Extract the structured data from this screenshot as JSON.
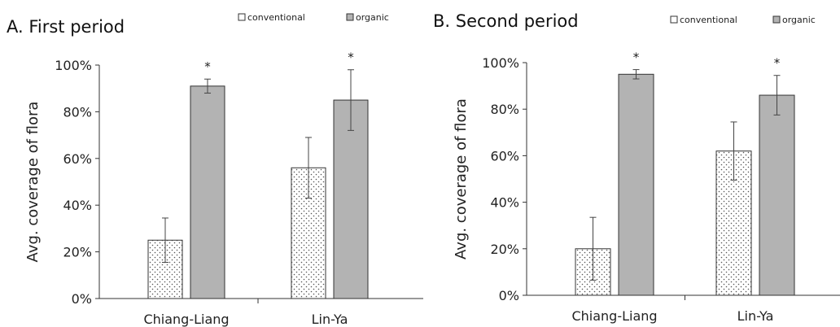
{
  "chart_data": [
    {
      "type": "bar",
      "title": "A. First period",
      "ylabel": "Avg. coverage of flora",
      "ylim": [
        0,
        100
      ],
      "yticks": [
        "0%",
        "20%",
        "40%",
        "60%",
        "80%",
        "100%"
      ],
      "categories": [
        "Chiang-Liang",
        "Lin-Ya"
      ],
      "series": [
        {
          "name": "conventional",
          "values": [
            25,
            56
          ],
          "errors": [
            9.5,
            13
          ]
        },
        {
          "name": "organic",
          "values": [
            91,
            85
          ],
          "errors": [
            3,
            13
          ]
        }
      ],
      "significance": [
        "*",
        "*"
      ],
      "legend": "top-right",
      "grid": false
    },
    {
      "type": "bar",
      "title": "B. Second period",
      "ylabel": "Avg. coverage of flora",
      "ylim": [
        0,
        100
      ],
      "yticks": [
        "0%",
        "20%",
        "40%",
        "60%",
        "80%",
        "100%"
      ],
      "categories": [
        "Chiang-Liang",
        "Lin-Ya"
      ],
      "series": [
        {
          "name": "conventional",
          "values": [
            20,
            62
          ],
          "errors": [
            13.5,
            12.5
          ]
        },
        {
          "name": "organic",
          "values": [
            95,
            86
          ],
          "errors": [
            2,
            8.5
          ]
        }
      ],
      "significance": [
        "*",
        "*"
      ],
      "legend": "top-right",
      "grid": false
    }
  ]
}
